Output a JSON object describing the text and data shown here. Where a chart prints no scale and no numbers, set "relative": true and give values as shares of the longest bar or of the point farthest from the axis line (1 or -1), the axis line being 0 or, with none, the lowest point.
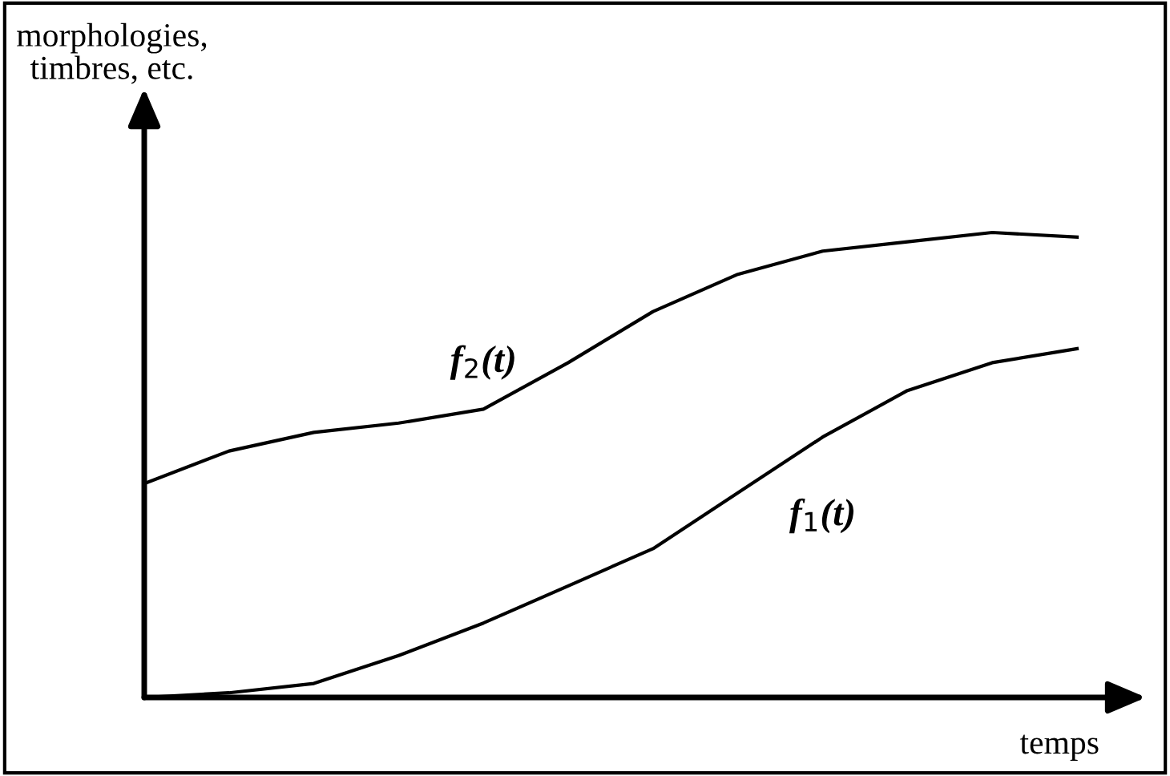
{
  "chart_data": {
    "type": "line",
    "relative": true,
    "xlabel": "temps",
    "ylabel": "morphologies,\ntimbres, etc.",
    "legend": false,
    "grid": false,
    "marker": "none",
    "line_style": "solid",
    "categories": [
      null,
      null,
      null,
      null,
      null,
      null,
      null,
      null,
      null,
      null,
      null,
      null
    ],
    "series": [
      {
        "name": "f$_{2}$(t)",
        "color": "#000000",
        "values": [
          0.46,
          0.53,
          0.57,
          0.59,
          0.62,
          0.72,
          0.83,
          0.91,
          0.96,
          0.98,
          1.0,
          0.99
        ]
      },
      {
        "name": "f$_{1}$(t)",
        "color": "#000000",
        "values": [
          0,
          0.01,
          0.03,
          0.09,
          0.16,
          0.24,
          0.32,
          0.44,
          0.56,
          0.66,
          0.72,
          0.75
        ]
      }
    ]
  }
}
